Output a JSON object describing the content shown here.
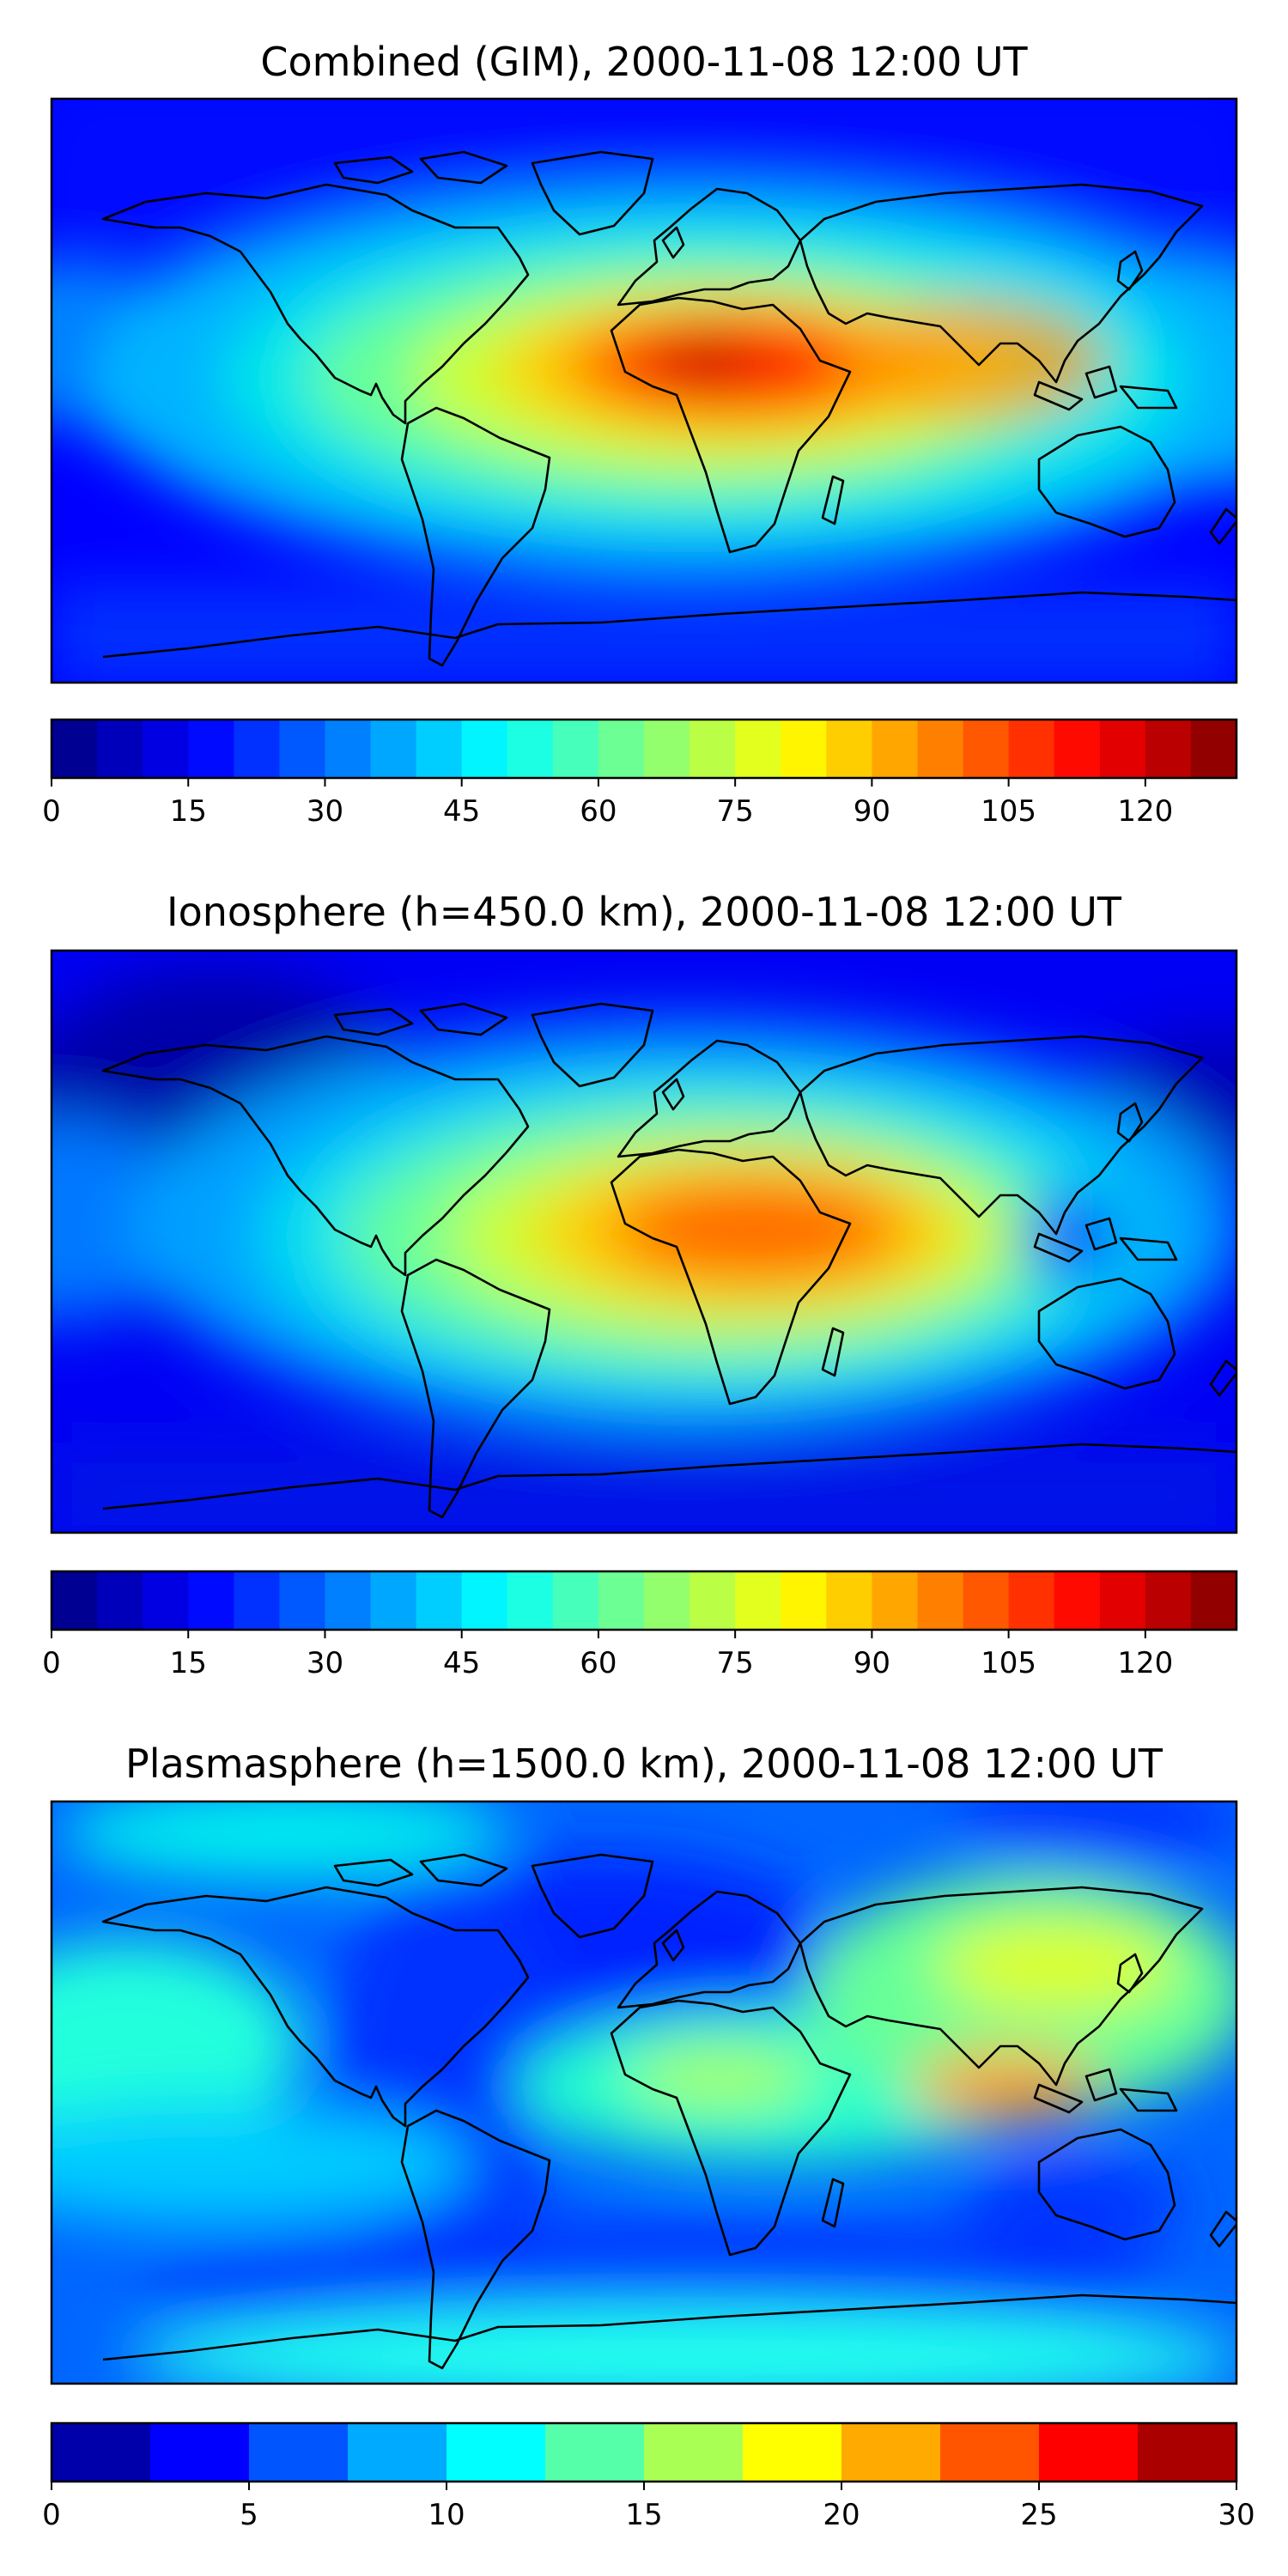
{
  "chart_data": [
    {
      "type": "heatmap",
      "title": "Combined (GIM), 2000-11-08 12:00 UT",
      "map": "world-contour",
      "peak_region": "equatorial Africa",
      "colorbar": {
        "min": 0,
        "max": 130,
        "step": 5,
        "ticks": [
          0,
          15,
          30,
          45,
          60,
          75,
          90,
          105,
          120
        ],
        "colormap": "jet"
      }
    },
    {
      "type": "heatmap",
      "title": "Ionosphere  (h=450.0 km), 2000-11-08 12:00 UT",
      "map": "world-contour",
      "peak_region": "equatorial Africa",
      "colorbar": {
        "min": 0,
        "max": 130,
        "step": 5,
        "ticks": [
          0,
          15,
          30,
          45,
          60,
          75,
          90,
          105,
          120
        ],
        "colormap": "jet"
      }
    },
    {
      "type": "heatmap",
      "title": "Plasmasphere (h=1500.0 km), 2000-11-08 12:00 UT",
      "map": "world-contour",
      "peak_region": "Southeast Asia",
      "colorbar": {
        "min": 0,
        "max": 30,
        "step": 2.5,
        "ticks": [
          0,
          5,
          10,
          15,
          20,
          25,
          30
        ],
        "colormap": "jet"
      }
    }
  ]
}
